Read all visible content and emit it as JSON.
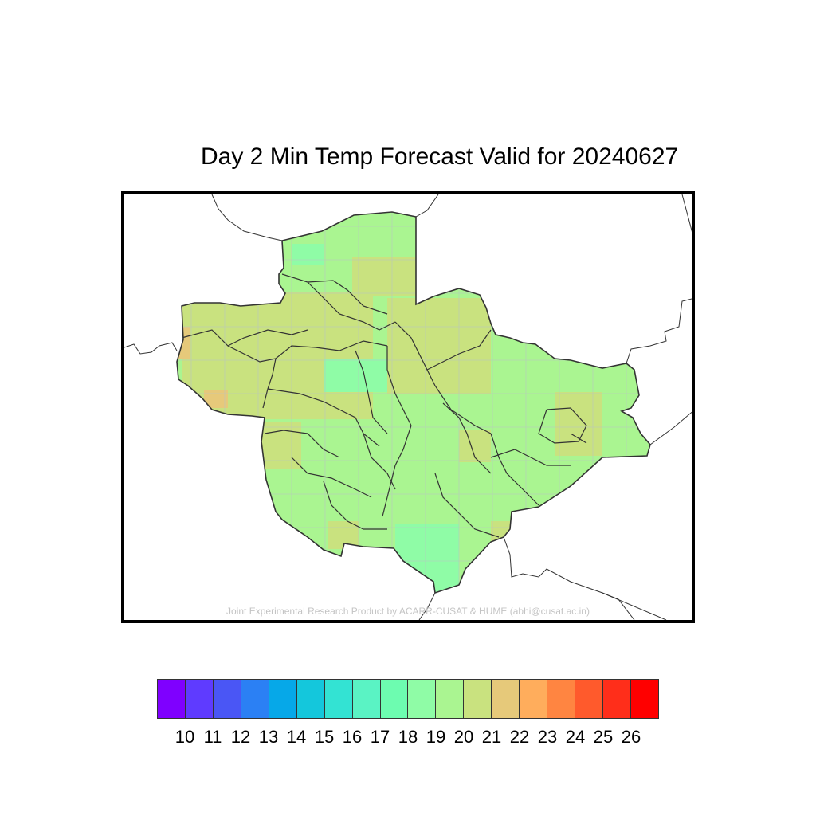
{
  "title": "Day 2 Min Temp Forecast Valid for 20240627",
  "credit": "Joint Experimental Research Product by ACARR-CUSAT & HUME (abhi@cusat.ac.in)",
  "colorbar": {
    "colors": [
      "#7f00ff",
      "#5f3bff",
      "#4a56f5",
      "#2b80f4",
      "#06a8e8",
      "#14c7dc",
      "#33e3d3",
      "#5af3c4",
      "#6dfcb0",
      "#8ffca6",
      "#aaf591",
      "#c9e27f",
      "#e6c97a",
      "#ffad5c",
      "#ff8541",
      "#ff5a2c",
      "#ff2e1a",
      "#ff0000"
    ],
    "labels": [
      "10",
      "11",
      "12",
      "13",
      "14",
      "15",
      "16",
      "17",
      "18",
      "19",
      "20",
      "21",
      "22",
      "23",
      "24",
      "25",
      "26"
    ]
  },
  "chart_data": {
    "type": "heatmap",
    "title": "Day 2 Min Temp Forecast Valid for 20240627",
    "variable": "minimum temperature",
    "color_scale": {
      "min": 10,
      "max": 26,
      "step": 1
    },
    "dominant_ranges": [
      "18-19",
      "19-20",
      "20-21"
    ],
    "cold_spots": "17-18 along the northern and southern edges",
    "warm_spots": "21-23 near the western border"
  }
}
